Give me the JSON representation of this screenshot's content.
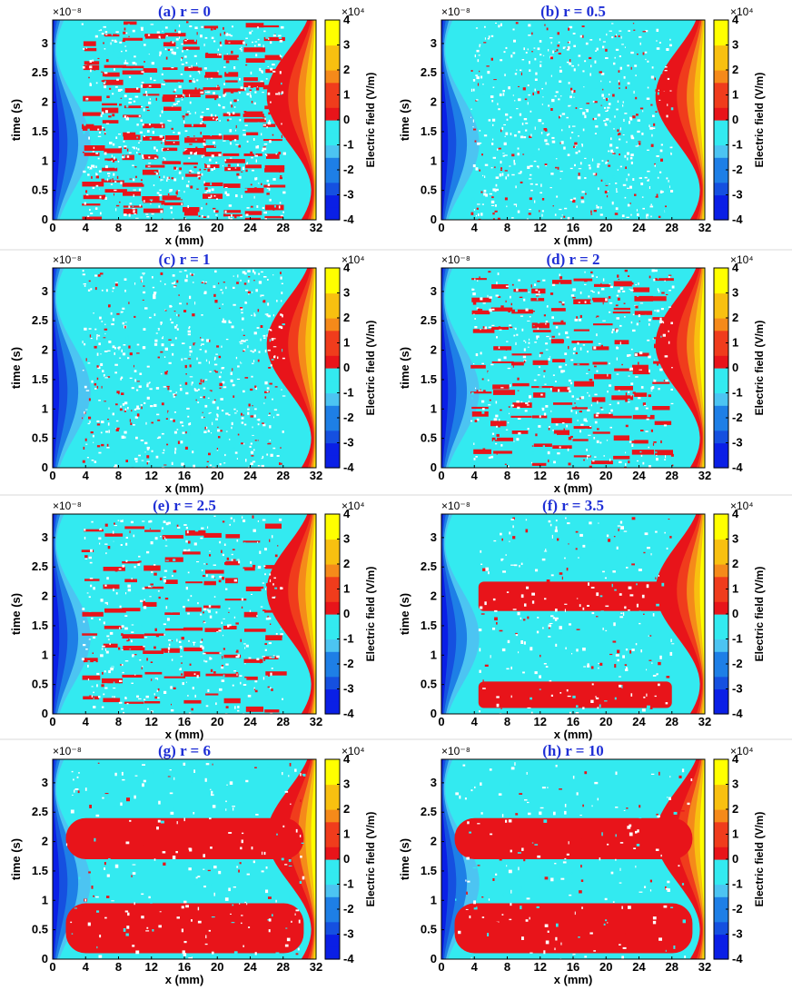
{
  "chart_data": [
    {
      "type": "heatmap",
      "title": "(a)  r = 0",
      "panel": "a",
      "r": 0,
      "xlabel": "x (mm)",
      "ylabel": "time (s)",
      "x_ticks": [
        0,
        4,
        8,
        12,
        16,
        20,
        24,
        28,
        32
      ],
      "y_tick_labels": [
        "0",
        "0.5",
        "1",
        "1.5",
        "2",
        "2.5",
        "3"
      ],
      "y_multiplier": "×10⁻⁸",
      "xlim": [
        0,
        32
      ],
      "ylim": [
        0,
        3.4
      ],
      "colorbar": {
        "label": "Electric field (V/m)",
        "multiplier": "×10⁴",
        "ticks": [
          -4,
          -3,
          -2,
          -1,
          0,
          1,
          2,
          3,
          4
        ],
        "range": [
          -4,
          4
        ]
      },
      "pattern": "banded",
      "bands_count": 14,
      "speckle_density": 0.32
    },
    {
      "type": "heatmap",
      "title": "(b)  r = 0.5",
      "panel": "b",
      "r": 0.5,
      "xlabel": "x (mm)",
      "ylabel": "time (s)",
      "x_ticks": [
        0,
        4,
        8,
        12,
        16,
        20,
        24,
        28,
        32
      ],
      "y_tick_labels": [
        "0",
        "0.5",
        "1",
        "1.5",
        "2",
        "2.5",
        "3"
      ],
      "y_multiplier": "×10⁻⁸",
      "xlim": [
        0,
        32
      ],
      "ylim": [
        0,
        3.4
      ],
      "colorbar": {
        "label": "Electric field (V/m)",
        "multiplier": "×10⁴",
        "ticks": [
          -4,
          -3,
          -2,
          -1,
          0,
          1,
          2,
          3,
          4
        ],
        "range": [
          -4,
          4
        ]
      },
      "pattern": "speckle",
      "speckle_density": 0.28
    },
    {
      "type": "heatmap",
      "title": "(c)  r = 1",
      "panel": "c",
      "r": 1,
      "xlabel": "x (mm)",
      "ylabel": "time (s)",
      "x_ticks": [
        0,
        4,
        8,
        12,
        16,
        20,
        24,
        28,
        32
      ],
      "y_tick_labels": [
        "0",
        "0.5",
        "1",
        "1.5",
        "2",
        "2.5",
        "3"
      ],
      "y_multiplier": "×10⁻⁸",
      "xlim": [
        0,
        32
      ],
      "ylim": [
        0,
        3.4
      ],
      "colorbar": {
        "label": "Electric field (V/m)",
        "multiplier": "×10⁴",
        "ticks": [
          -4,
          -3,
          -2,
          -1,
          0,
          1,
          2,
          3,
          4
        ],
        "range": [
          -4,
          4
        ]
      },
      "pattern": "speckle",
      "speckle_density": 0.3
    },
    {
      "type": "heatmap",
      "title": "(d)  r = 2",
      "panel": "d",
      "r": 2,
      "xlabel": "x (mm)",
      "ylabel": "time (s)",
      "x_ticks": [
        0,
        4,
        8,
        12,
        16,
        20,
        24,
        28,
        32
      ],
      "y_tick_labels": [
        "0",
        "0.5",
        "1",
        "1.5",
        "2",
        "2.5",
        "3"
      ],
      "y_multiplier": "×10⁻⁸",
      "xlim": [
        0,
        32
      ],
      "ylim": [
        0,
        3.4
      ],
      "colorbar": {
        "label": "Electric field (V/m)",
        "multiplier": "×10⁴",
        "ticks": [
          -4,
          -3,
          -2,
          -1,
          0,
          1,
          2,
          3,
          4
        ],
        "range": [
          -4,
          4
        ]
      },
      "pattern": "banded",
      "bands_count": 10,
      "speckle_density": 0.22
    },
    {
      "type": "heatmap",
      "title": "(e)  r = 2.5",
      "panel": "e",
      "r": 2.5,
      "xlabel": "x (mm)",
      "ylabel": "time (s)",
      "x_ticks": [
        0,
        4,
        8,
        12,
        16,
        20,
        24,
        28,
        32
      ],
      "y_tick_labels": [
        "0",
        "0.5",
        "1",
        "1.5",
        "2",
        "2.5",
        "3"
      ],
      "y_multiplier": "×10⁻⁸",
      "xlim": [
        0,
        32
      ],
      "ylim": [
        0,
        3.4
      ],
      "colorbar": {
        "label": "Electric field (V/m)",
        "multiplier": "×10⁴",
        "ticks": [
          -4,
          -3,
          -2,
          -1,
          0,
          1,
          2,
          3,
          4
        ],
        "range": [
          -4,
          4
        ]
      },
      "pattern": "banded",
      "bands_count": 8,
      "speckle_density": 0.2
    },
    {
      "type": "heatmap",
      "title": "(f)  r = 3.5",
      "panel": "f",
      "r": 3.5,
      "xlabel": "x (mm)",
      "ylabel": "time (s)",
      "x_ticks": [
        0,
        4,
        8,
        12,
        16,
        20,
        24,
        28,
        32
      ],
      "y_tick_labels": [
        "0",
        "0.5",
        "1",
        "1.5",
        "2",
        "2.5",
        "3"
      ],
      "y_multiplier": "×10⁻⁸",
      "xlim": [
        0,
        32
      ],
      "ylim": [
        0,
        3.4
      ],
      "colorbar": {
        "label": "Electric field (V/m)",
        "multiplier": "×10⁴",
        "ticks": [
          -4,
          -3,
          -2,
          -1,
          0,
          1,
          2,
          3,
          4
        ],
        "range": [
          -4,
          4
        ]
      },
      "pattern": "blocks",
      "speckle_density": 0.22
    },
    {
      "type": "heatmap",
      "title": "(g)  r = 6",
      "panel": "g",
      "r": 6,
      "xlabel": "x (mm)",
      "ylabel": "time (s)",
      "x_ticks": [
        0,
        4,
        8,
        12,
        16,
        20,
        24,
        28,
        32
      ],
      "y_tick_labels": [
        "0",
        "0.5",
        "1",
        "1.5",
        "2",
        "2.5",
        "3"
      ],
      "y_multiplier": "×10⁻⁸",
      "xlim": [
        0,
        32
      ],
      "ylim": [
        0,
        3.4
      ],
      "colorbar": {
        "label": "Electric field (V/m)",
        "multiplier": "×10⁴",
        "ticks": [
          -4,
          -3,
          -2,
          -1,
          0,
          1,
          2,
          3,
          4
        ],
        "range": [
          -4,
          4
        ]
      },
      "pattern": "blocks",
      "speckle_density": 0.18
    },
    {
      "type": "heatmap",
      "title": "(h)  r = 10",
      "panel": "h",
      "r": 10,
      "xlabel": "x (mm)",
      "ylabel": "time (s)",
      "x_ticks": [
        0,
        4,
        8,
        12,
        16,
        20,
        24,
        28,
        32
      ],
      "y_tick_labels": [
        "0",
        "0.5",
        "1",
        "1.5",
        "2",
        "2.5",
        "3"
      ],
      "y_multiplier": "×10⁻⁸",
      "xlim": [
        0,
        32
      ],
      "ylim": [
        0,
        3.4
      ],
      "colorbar": {
        "label": "Electric field (V/m)",
        "multiplier": "×10⁴",
        "ticks": [
          -4,
          -3,
          -2,
          -1,
          0,
          1,
          2,
          3,
          4
        ],
        "range": [
          -4,
          4
        ]
      },
      "pattern": "blocks",
      "speckle_density": 0.16
    }
  ],
  "colors": {
    "title": "#1f2fd6",
    "neg4": "#0a1fe6",
    "neg3": "#1550e0",
    "neg2": "#1e7fe6",
    "neg1": "#4cc4f2",
    "zero_neg": "#33eaf0",
    "zero_pos": "#e8141a",
    "pos1": "#f03c1c",
    "pos2": "#f58a1a",
    "pos3": "#f8c010",
    "pos4": "#ffff00",
    "speckle": "#ffffff"
  }
}
